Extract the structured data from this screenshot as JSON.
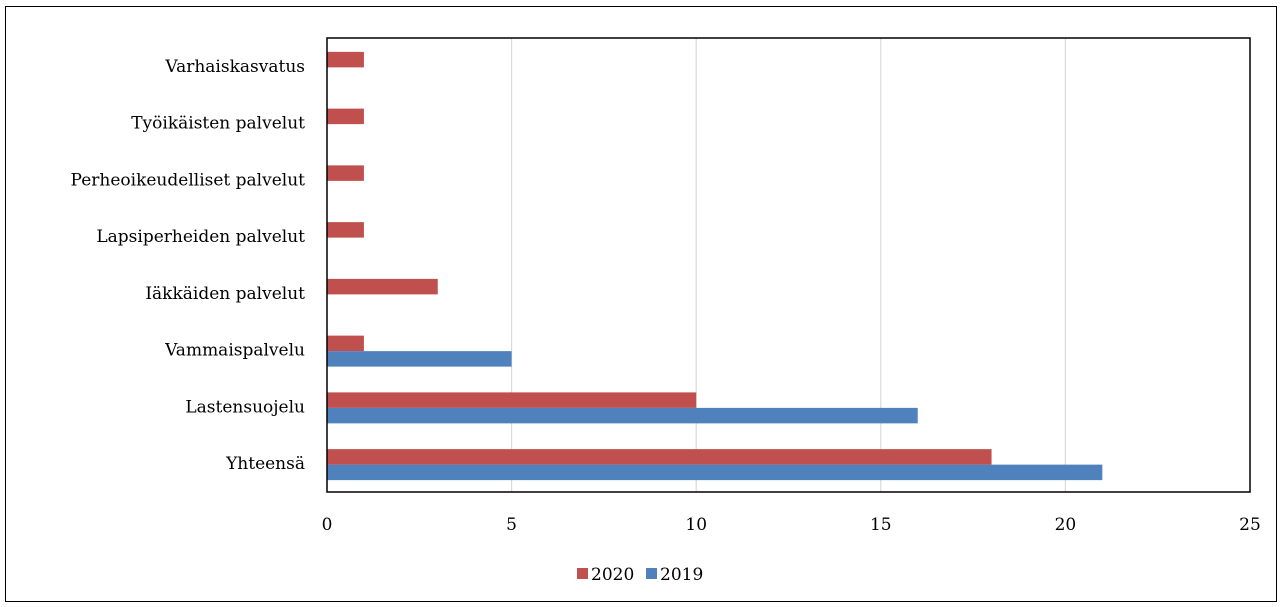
{
  "chart_data": {
    "type": "bar",
    "orientation": "horizontal",
    "categories": [
      "Varhaiskasvatus",
      "Työikäisten palvelut",
      "Perheoikeudelliset palvelut",
      "Lapsiperheiden palvelut",
      "Iäkkäiden palvelut",
      "Vammaispalvelu",
      "Lastensuojelu",
      "Yhteensä"
    ],
    "series": [
      {
        "name": "2020",
        "color": "#c0504d",
        "values": [
          1,
          1,
          1,
          1,
          3,
          1,
          10,
          18
        ]
      },
      {
        "name": "2019",
        "color": "#4f81bd",
        "values": [
          0,
          0,
          0,
          0,
          0,
          5,
          16,
          21
        ]
      }
    ],
    "xlim": [
      0,
      25
    ],
    "xticks": [
      "0",
      "5",
      "10",
      "15",
      "20",
      "25"
    ],
    "grid": true,
    "legend_position": "bottom",
    "title": "",
    "xlabel": "",
    "ylabel": ""
  }
}
